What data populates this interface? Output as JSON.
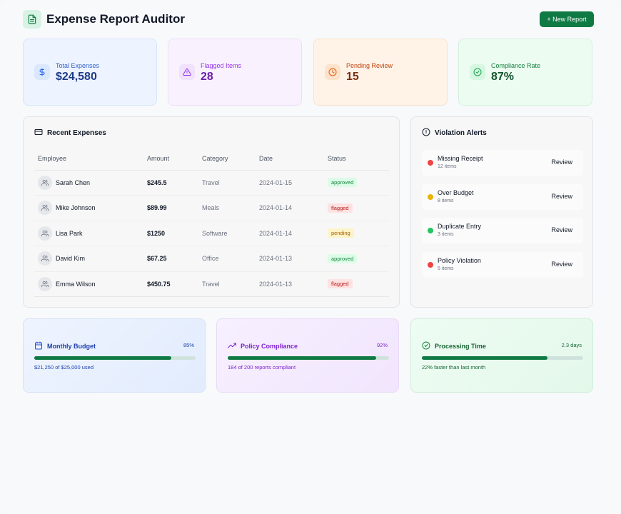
{
  "header": {
    "title": "Expense Report Auditor",
    "new_button": "+ New Report",
    "icon": "document-icon"
  },
  "stats": [
    {
      "label": "Total Expenses",
      "value": "$24,580",
      "icon": "dollar-icon"
    },
    {
      "label": "Flagged Items",
      "value": "28",
      "icon": "warning-icon"
    },
    {
      "label": "Pending Review",
      "value": "15",
      "icon": "clock-icon"
    },
    {
      "label": "Compliance Rate",
      "value": "87%",
      "icon": "check-circle-icon"
    }
  ],
  "expenses": {
    "title": "Recent Expenses",
    "icon": "credit-card-icon",
    "columns": [
      "Employee",
      "Amount",
      "Category",
      "Date",
      "Status"
    ],
    "rows": [
      {
        "employee": "Sarah Chen",
        "amount": "$245.5",
        "category": "Travel",
        "date": "2024-01-15",
        "status": "approved"
      },
      {
        "employee": "Mike Johnson",
        "amount": "$89.99",
        "category": "Meals",
        "date": "2024-01-14",
        "status": "flagged"
      },
      {
        "employee": "Lisa Park",
        "amount": "$1250",
        "category": "Software",
        "date": "2024-01-14",
        "status": "pending"
      },
      {
        "employee": "David Kim",
        "amount": "$67.25",
        "category": "Office",
        "date": "2024-01-13",
        "status": "approved"
      },
      {
        "employee": "Emma Wilson",
        "amount": "$450.75",
        "category": "Travel",
        "date": "2024-01-13",
        "status": "flagged"
      }
    ]
  },
  "alerts": {
    "title": "Violation Alerts",
    "icon": "alert-circle-icon",
    "review_label": "Review",
    "items": [
      {
        "name": "Missing Receipt",
        "count": "12 items",
        "color": "#ef4444"
      },
      {
        "name": "Over Budget",
        "count": "8 items",
        "color": "#eab308"
      },
      {
        "name": "Duplicate Entry",
        "count": "3 items",
        "color": "#22c55e"
      },
      {
        "name": "Policy Violation",
        "count": "5 items",
        "color": "#ef4444"
      }
    ]
  },
  "summary": [
    {
      "title": "Monthly Budget",
      "value": "85%",
      "progress": 0.85,
      "sub": "$21,250 of $25,000 used",
      "icon": "calendar-icon"
    },
    {
      "title": "Policy Compliance",
      "value": "92%",
      "progress": 0.92,
      "sub": "184 of 200 reports compliant",
      "icon": "trending-up-icon"
    },
    {
      "title": "Processing Time",
      "value": "2.3 days",
      "progress": 0.78,
      "sub": "22% faster than last month",
      "icon": "check-circle-icon"
    }
  ],
  "colors": {
    "accent": "#0f7a44"
  }
}
